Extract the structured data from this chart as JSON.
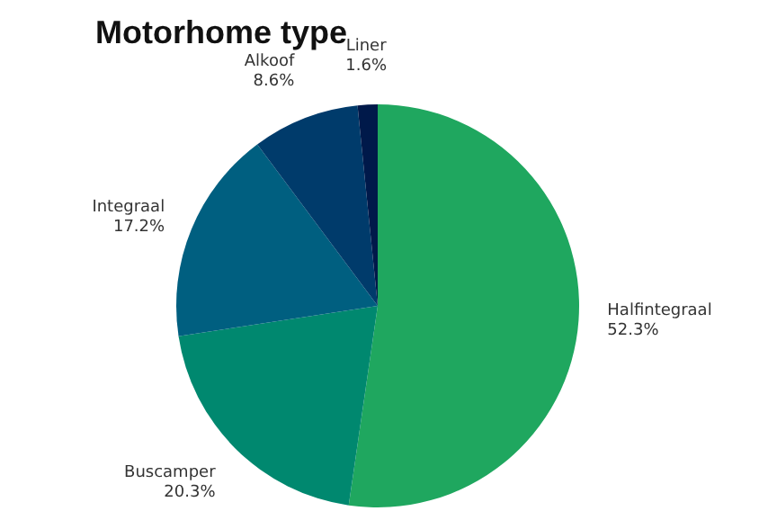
{
  "chart_data": {
    "type": "pie",
    "title": "Motorhome type",
    "categories": [
      "Halfintegraal",
      "Buscamper",
      "Integraal",
      "Alkoof",
      "Liner"
    ],
    "values": [
      52.3,
      20.3,
      17.2,
      8.6,
      1.6
    ],
    "value_labels": [
      "52.3%",
      "20.3%",
      "17.2%",
      "8.6%",
      "1.6%"
    ],
    "colors": [
      "#1fa75f",
      "#00886f",
      "#005f80",
      "#003b6b",
      "#00194a"
    ],
    "legend": false
  }
}
